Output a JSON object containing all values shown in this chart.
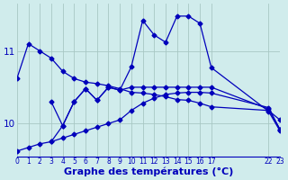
{
  "bg_color": "#d0ecec",
  "line_color": "#0000bb",
  "grid_color": "#a8c8c4",
  "xlabel": "Graphe des températures (°C)",
  "xlabel_fontsize": 8,
  "yticks": [
    10,
    11
  ],
  "ylim": [
    9.55,
    11.65
  ],
  "xlim": [
    0,
    23
  ],
  "xtick_positions": [
    0,
    1,
    2,
    3,
    4,
    5,
    6,
    7,
    8,
    9,
    10,
    11,
    12,
    13,
    14,
    15,
    16,
    17,
    22,
    23
  ],
  "xtick_labels": [
    "0",
    "1",
    "2",
    "3",
    "4",
    "5",
    "6",
    "7",
    "8",
    "9",
    "10",
    "11",
    "12",
    "13",
    "14",
    "15",
    "16",
    "17",
    "22",
    "23"
  ],
  "curve1_x": [
    0,
    1,
    2,
    3,
    4,
    5,
    6,
    7,
    8,
    9,
    10,
    11,
    12,
    13,
    14,
    15,
    16,
    17,
    22,
    23
  ],
  "curve1_y": [
    10.62,
    11.1,
    11.0,
    10.9,
    10.72,
    10.62,
    10.57,
    10.55,
    10.52,
    10.48,
    10.43,
    10.42,
    10.4,
    10.37,
    10.33,
    10.32,
    10.28,
    10.23,
    10.18,
    10.05
  ],
  "curve2_x": [
    3,
    4,
    5,
    6,
    7,
    8,
    9,
    10,
    11,
    12,
    13,
    14,
    15,
    16,
    17,
    22,
    23
  ],
  "curve2_y": [
    10.3,
    9.97,
    10.3,
    10.48,
    10.32,
    10.5,
    10.46,
    10.78,
    11.42,
    11.22,
    11.12,
    11.48,
    11.48,
    11.38,
    10.77,
    10.17,
    9.9
  ],
  "curve3_x": [
    0,
    1,
    2,
    3,
    4,
    5,
    6,
    7,
    8,
    9,
    10,
    11,
    12,
    13,
    14,
    15,
    16,
    17,
    22,
    23
  ],
  "curve3_y": [
    9.62,
    9.67,
    9.72,
    9.75,
    9.8,
    9.85,
    9.9,
    9.95,
    10.0,
    10.05,
    10.18,
    10.28,
    10.35,
    10.4,
    10.42,
    10.43,
    10.43,
    10.42,
    10.22,
    9.92
  ],
  "curve4_x": [
    3,
    4,
    5,
    6,
    7,
    8,
    9,
    10,
    11,
    12,
    13,
    14,
    15,
    16,
    17,
    22,
    23
  ],
  "curve4_y": [
    9.75,
    9.97,
    10.3,
    10.48,
    10.32,
    10.5,
    10.46,
    10.5,
    10.5,
    10.5,
    10.5,
    10.5,
    10.5,
    10.5,
    10.5,
    10.2,
    9.92
  ]
}
